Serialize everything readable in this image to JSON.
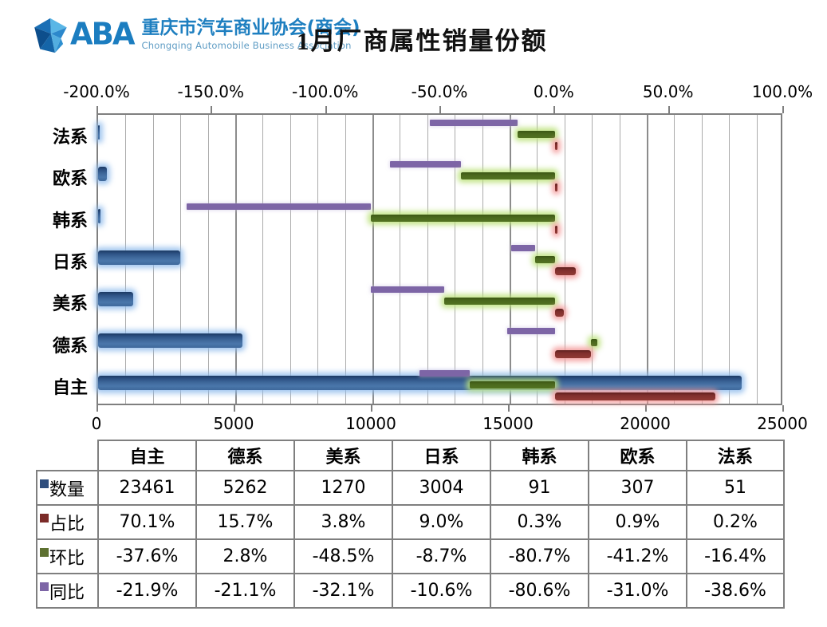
{
  "header": {
    "logo_letters": "ABA",
    "org_cn": "重庆市汽车商业协会(商会)",
    "org_en": "Chongqing Automobile Business Association",
    "title": "1月厂商属性销量份额"
  },
  "chart_data": {
    "type": "bar",
    "orientation": "horizontal",
    "title": "1月厂商属性销量份额",
    "grid": true,
    "legend_position": "table-row-labels",
    "categories": [
      "自主",
      "德系",
      "美系",
      "日系",
      "韩系",
      "欧系",
      "法系"
    ],
    "category_axis_order_top_to_bottom": [
      "法系",
      "欧系",
      "韩系",
      "日系",
      "美系",
      "德系",
      "自主"
    ],
    "series": [
      {
        "name": "数量",
        "axis": "bottom",
        "stacked": false,
        "color": "#3f689b",
        "values": [
          23461,
          5262,
          1270,
          3004,
          91,
          307,
          51
        ]
      },
      {
        "name": "占比",
        "axis": "top",
        "stacked": true,
        "unit": "%",
        "color": "#8a3531",
        "values": [
          70.1,
          15.7,
          3.8,
          9.0,
          0.3,
          0.9,
          0.2
        ]
      },
      {
        "name": "环比",
        "axis": "top",
        "stacked": true,
        "unit": "%",
        "color": "#4f7021",
        "values": [
          -37.6,
          2.8,
          -48.5,
          -8.7,
          -80.7,
          -41.2,
          -16.4
        ]
      },
      {
        "name": "同比",
        "axis": "top",
        "stacked": true,
        "unit": "%",
        "color": "#7d65a6",
        "values": [
          -21.9,
          -21.1,
          -32.1,
          -10.6,
          -80.6,
          -31.0,
          -38.6
        ]
      }
    ],
    "top_axis": {
      "min": -200,
      "max": 100,
      "tick_step": 50,
      "tick_labels": [
        "-200.0%",
        "-150.0%",
        "-100.0%",
        "-50.0%",
        "0.0%",
        "50.0%",
        "100.0%"
      ]
    },
    "bottom_axis": {
      "min": 0,
      "max": 25000,
      "label_step": 5000,
      "minor_grid_step": 1000,
      "tick_labels": [
        "0",
        "5000",
        "10000",
        "15000",
        "20000",
        "25000"
      ]
    }
  },
  "table": {
    "column_headers": [
      "自主",
      "德系",
      "美系",
      "日系",
      "韩系",
      "欧系",
      "法系"
    ],
    "rows": [
      {
        "label": "数量",
        "swatch_color": "#2f4e7d",
        "values": [
          "23461",
          "5262",
          "1270",
          "3004",
          "91",
          "307",
          "51"
        ]
      },
      {
        "label": "占比",
        "swatch_color": "#7b2b28",
        "values": [
          "70.1%",
          "15.7%",
          "3.8%",
          "9.0%",
          "0.3%",
          "0.9%",
          "0.2%"
        ]
      },
      {
        "label": "环比",
        "swatch_color": "#5d7030",
        "values": [
          "-37.6%",
          "2.8%",
          "-48.5%",
          "-8.7%",
          "-80.7%",
          "-41.2%",
          "-16.4%"
        ]
      },
      {
        "label": "同比",
        "swatch_color": "#7d65a6",
        "values": [
          "-21.9%",
          "-21.1%",
          "-32.1%",
          "-10.6%",
          "-80.6%",
          "-31.0%",
          "-38.6%"
        ]
      }
    ]
  },
  "colors": {
    "logo_blue": "#1b7dc0",
    "bar_qty": "#3f689b",
    "bar_qty_glow": "#8cb9eb",
    "bar_zhanbi": "#8a3531",
    "bar_zhanbi_glow": "#f39696",
    "bar_huanbi": "#4f7021",
    "bar_huanbi_glow": "#bae078",
    "bar_tongbi": "#7d65a6",
    "grid": "#ababab",
    "axis": "#7f7f7f"
  }
}
